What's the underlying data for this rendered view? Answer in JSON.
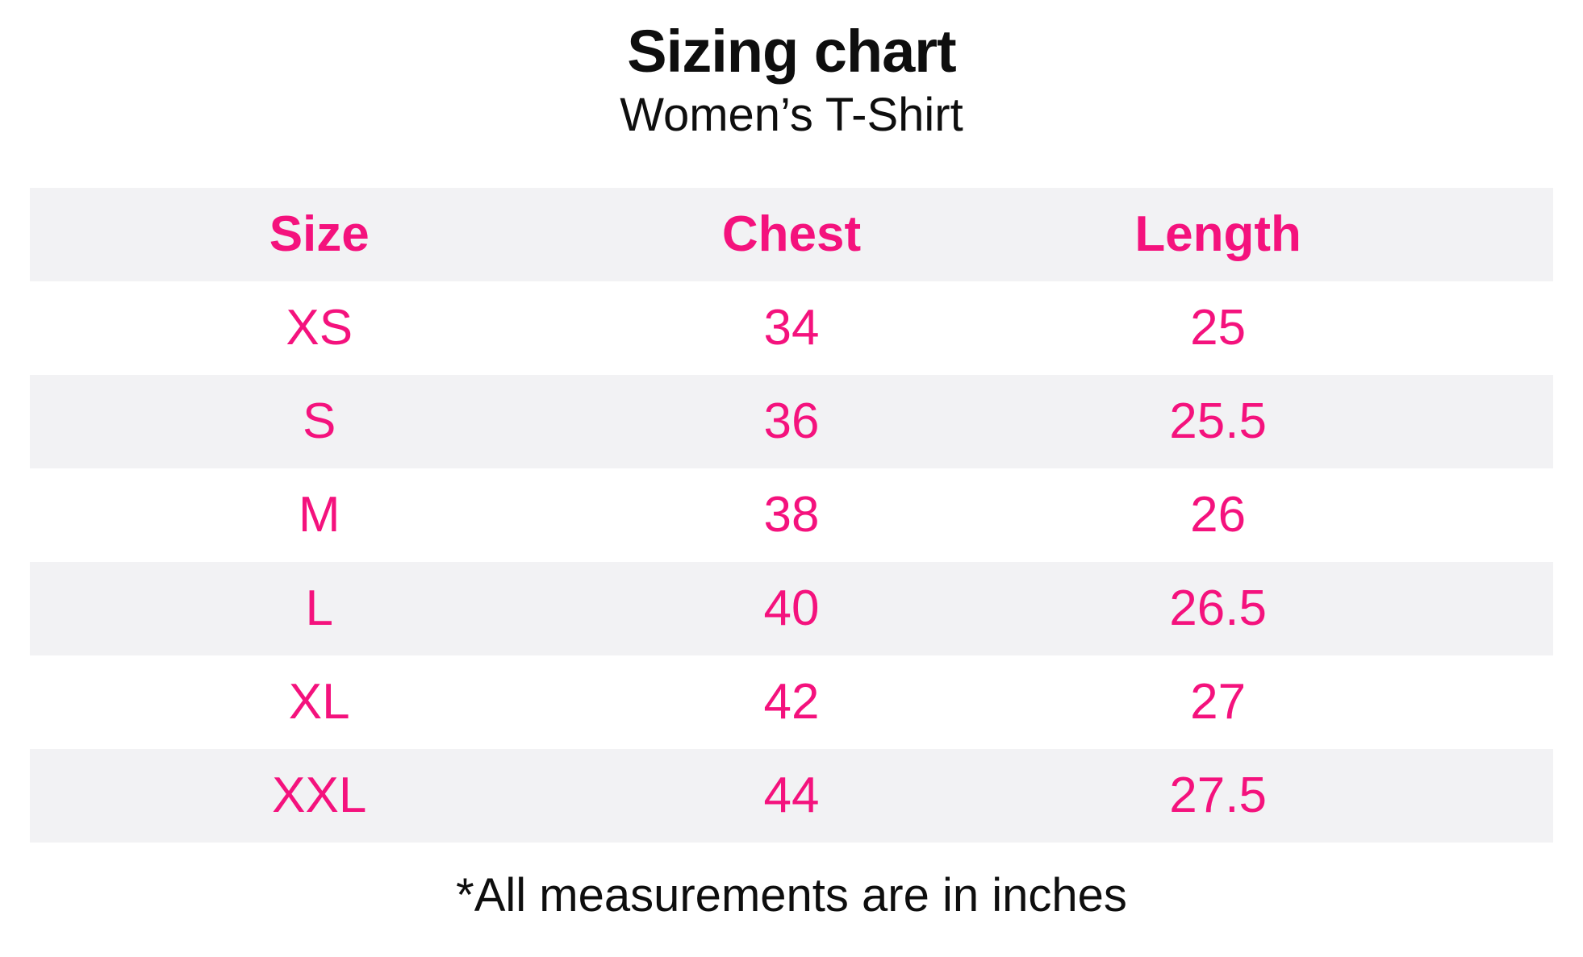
{
  "header": {
    "title": "Sizing chart",
    "subtitle": "Women’s T-Shirt"
  },
  "chart_data": {
    "type": "table",
    "title": "Sizing chart",
    "subtitle": "Women’s T-Shirt",
    "columns": [
      "Size",
      "Chest",
      "Length"
    ],
    "rows": [
      [
        "XS",
        "34",
        "25"
      ],
      [
        "S",
        "36",
        "25.5"
      ],
      [
        "M",
        "38",
        "26"
      ],
      [
        "L",
        "40",
        "26.5"
      ],
      [
        "XL",
        "42",
        "27"
      ],
      [
        "XXL",
        "44",
        "27.5"
      ]
    ],
    "footnote": "*All measurements are in inches",
    "units": "inches",
    "layout_hints": {
      "striped_rows": true,
      "stripe_applies_to": [
        "header",
        "S",
        "L",
        "XXL"
      ],
      "text_alignment": "center"
    }
  },
  "colors": {
    "accent_pink": "#F4127D",
    "row_stripe": "#F2F2F4",
    "text_black": "#0E0E0E",
    "page_bg": "#FFFFFF"
  }
}
